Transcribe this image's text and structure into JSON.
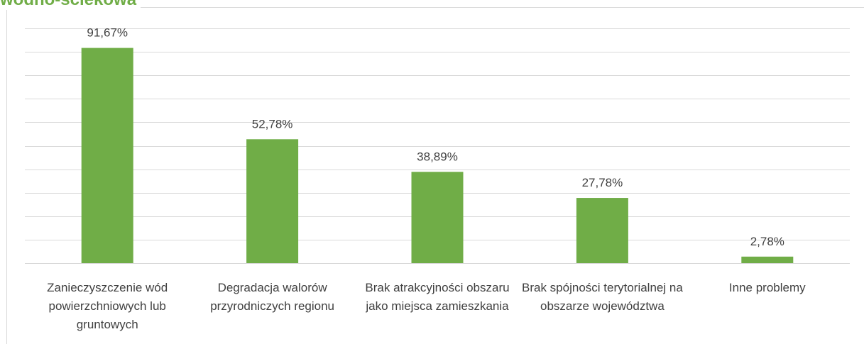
{
  "chart_data": {
    "type": "bar",
    "title": "wodno-ściekowa",
    "categories": [
      "Zanieczyszczenie wód powierzchniowych lub gruntowych",
      "Degradacja walorów przyrodniczych regionu",
      "Brak atrakcyjności obszaru jako miejsca zamieszkania",
      "Brak spójności terytorialnej na obszarze województwa",
      "Inne problemy"
    ],
    "values": [
      91.67,
      52.78,
      38.89,
      27.78,
      2.78
    ],
    "value_labels": [
      "91,67%",
      "52,78%",
      "38,89%",
      "27,78%",
      "2,78%"
    ],
    "color": "#70ad47",
    "ylim": [
      0,
      100
    ],
    "yticks": [
      0,
      10,
      20,
      30,
      40,
      50,
      60,
      70,
      80,
      90,
      100
    ],
    "grid": true
  }
}
